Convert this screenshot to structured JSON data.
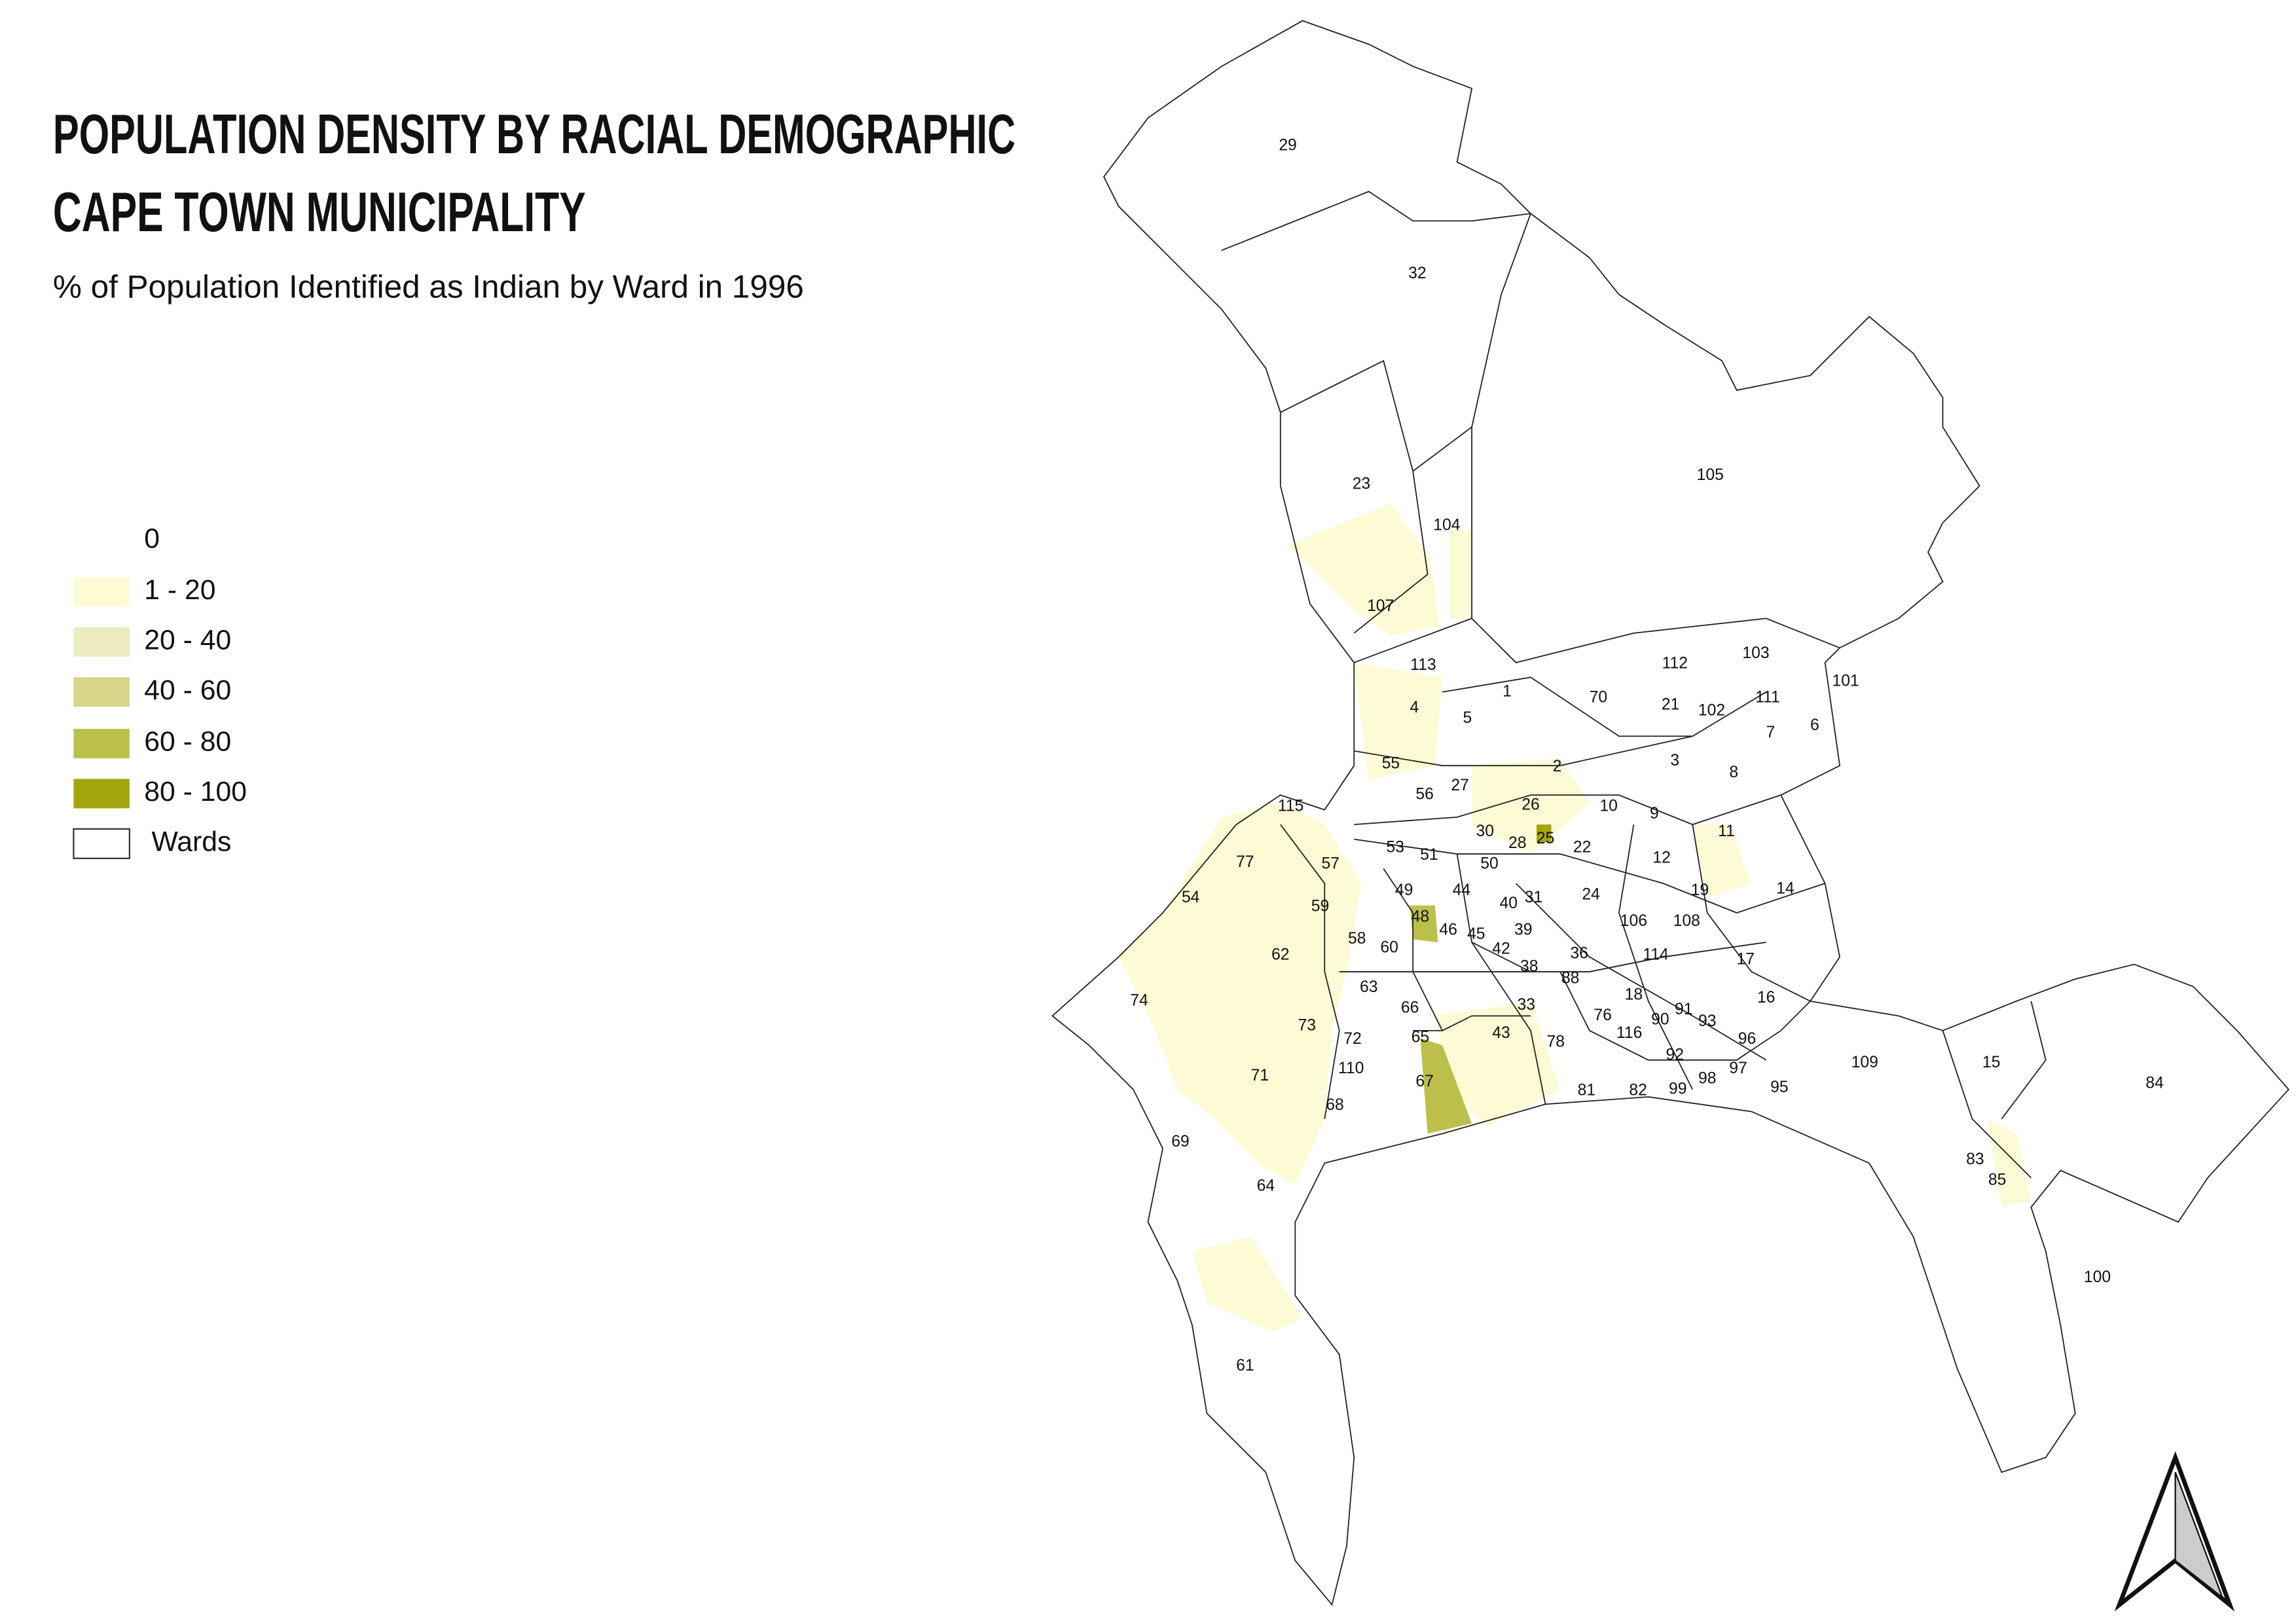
{
  "header": {
    "title_lines": [
      "POPULATION DENSITY BY RACIAL DEMOGRAPHIC",
      "CAPE TOWN MUNICIPALITY"
    ],
    "subtitle": "% of Population Identified as Indian by Ward in 1996"
  },
  "legend": {
    "items": [
      {
        "label": "0",
        "color": "#ffffff"
      },
      {
        "label": "1 - 20",
        "color": "#fdfbd5"
      },
      {
        "label": "20 - 40",
        "color": "#ecebc0"
      },
      {
        "label": "40 - 60",
        "color": "#d6d588"
      },
      {
        "label": "60 - 80",
        "color": "#bcc04a"
      },
      {
        "label": "80 - 100",
        "color": "#a2a60a"
      },
      {
        "label": "Wards",
        "color": "#ffffff"
      }
    ]
  },
  "wards": [
    "29",
    "32",
    "105",
    "23",
    "104",
    "107",
    "113",
    "1",
    "70",
    "112",
    "103",
    "101",
    "21",
    "102",
    "111",
    "7",
    "6",
    "4",
    "5",
    "3",
    "8",
    "55",
    "56",
    "27",
    "2",
    "26",
    "10",
    "9",
    "115",
    "11",
    "30",
    "28",
    "25",
    "22",
    "12",
    "53",
    "51",
    "50",
    "77",
    "57",
    "44",
    "31",
    "40",
    "49",
    "24",
    "19",
    "14",
    "54",
    "59",
    "48",
    "46",
    "45",
    "39",
    "106",
    "108",
    "58",
    "60",
    "42",
    "36",
    "114",
    "17",
    "62",
    "38",
    "88",
    "16",
    "18",
    "63",
    "74",
    "66",
    "33",
    "76",
    "91",
    "90",
    "93",
    "73",
    "65",
    "116",
    "96",
    "43",
    "72",
    "78",
    "92",
    "109",
    "15",
    "110",
    "97",
    "98",
    "71",
    "67",
    "84",
    "81",
    "82",
    "99",
    "95",
    "68",
    "69",
    "83",
    "85",
    "64",
    "100",
    "61"
  ]
}
